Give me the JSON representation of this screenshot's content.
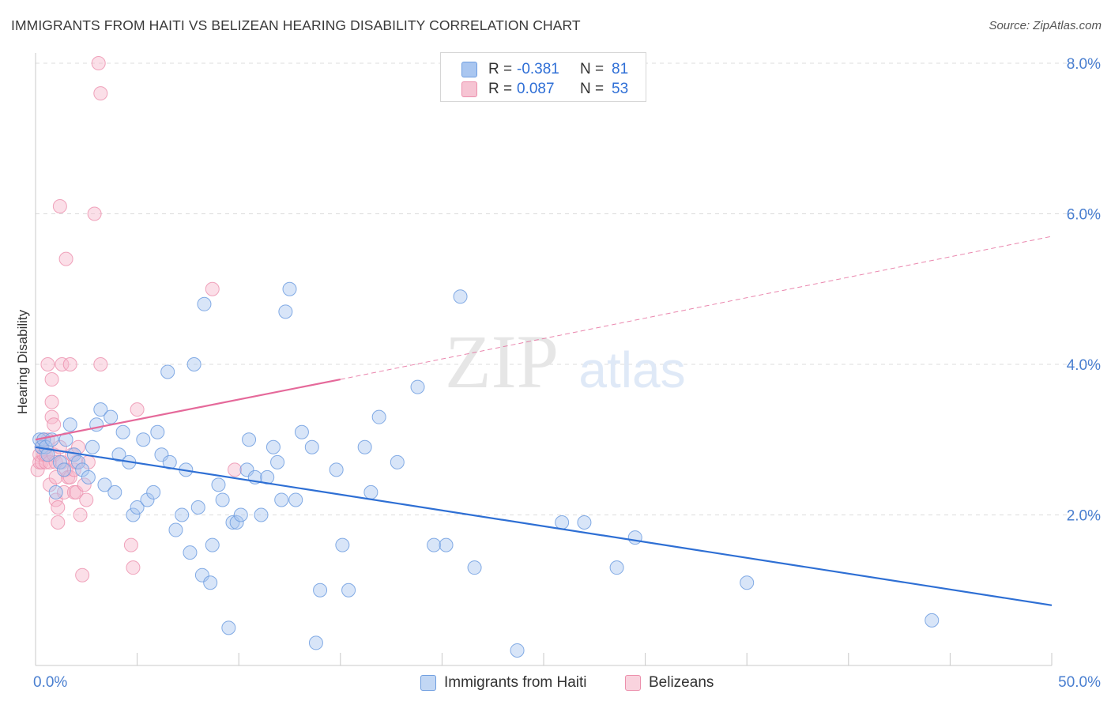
{
  "header": {
    "title": "IMMIGRANTS FROM HAITI VS BELIZEAN HEARING DISABILITY CORRELATION CHART",
    "source": "Source: ZipAtlas.com"
  },
  "watermark": {
    "zip": "ZIP",
    "atlas": "atlas"
  },
  "legend": {
    "r_label": "R =",
    "n_label": "N =",
    "rows": [
      {
        "r": "-0.381",
        "n": "81"
      },
      {
        "r": "0.087",
        "n": "53"
      }
    ]
  },
  "bottom_legend": {
    "haiti": "Immigrants from Haiti",
    "belize": "Belizeans"
  },
  "colors": {
    "haiti_fill": "#a9c6f0",
    "haiti_stroke": "#6f9ee0",
    "haiti_line": "#2e6fd4",
    "belize_fill": "#f6b8cb",
    "belize_stroke": "#ec8fac",
    "belize_line": "#e5699a",
    "tick_text": "#4a7fd0",
    "grid": "#dcdcdc"
  },
  "chart_data": {
    "type": "scatter",
    "title": "IMMIGRANTS FROM HAITI VS BELIZEAN HEARING DISABILITY CORRELATION CHART",
    "xlabel": "",
    "ylabel": "Hearing Disability",
    "xlim": [
      0,
      50
    ],
    "ylim": [
      0,
      8.0
    ],
    "x_tick_labels": [
      "0.0%",
      "50.0%"
    ],
    "y_ticks": [
      2.0,
      4.0,
      6.0,
      8.0
    ],
    "y_tick_labels": [
      "2.0%",
      "4.0%",
      "6.0%",
      "8.0%"
    ],
    "grid": true,
    "legend_placement": "top-center",
    "series": [
      {
        "name": "Immigrants from Haiti",
        "r": -0.381,
        "n": 81,
        "trend": {
          "x": [
            0,
            50
          ],
          "y": [
            2.9,
            0.8
          ]
        },
        "points": [
          [
            0.2,
            3.0
          ],
          [
            0.3,
            2.9
          ],
          [
            0.4,
            3.0
          ],
          [
            0.5,
            2.9
          ],
          [
            0.6,
            2.8
          ],
          [
            0.8,
            3.0
          ],
          [
            1.0,
            2.3
          ],
          [
            1.2,
            2.7
          ],
          [
            1.4,
            2.6
          ],
          [
            1.5,
            3.0
          ],
          [
            1.7,
            3.2
          ],
          [
            1.9,
            2.8
          ],
          [
            2.1,
            2.7
          ],
          [
            2.3,
            2.6
          ],
          [
            2.6,
            2.5
          ],
          [
            2.8,
            2.9
          ],
          [
            3.0,
            3.2
          ],
          [
            3.2,
            3.4
          ],
          [
            3.4,
            2.4
          ],
          [
            3.7,
            3.3
          ],
          [
            3.9,
            2.3
          ],
          [
            4.1,
            2.8
          ],
          [
            4.3,
            3.1
          ],
          [
            4.6,
            2.7
          ],
          [
            4.8,
            2.0
          ],
          [
            5.0,
            2.1
          ],
          [
            5.3,
            3.0
          ],
          [
            5.5,
            2.2
          ],
          [
            5.8,
            2.3
          ],
          [
            6.0,
            3.1
          ],
          [
            6.2,
            2.8
          ],
          [
            6.5,
            3.9
          ],
          [
            6.6,
            2.7
          ],
          [
            6.9,
            1.8
          ],
          [
            7.2,
            2.0
          ],
          [
            7.4,
            2.6
          ],
          [
            7.6,
            1.5
          ],
          [
            7.8,
            4.0
          ],
          [
            8.0,
            2.1
          ],
          [
            8.2,
            1.2
          ],
          [
            8.3,
            4.8
          ],
          [
            8.6,
            1.1
          ],
          [
            8.7,
            1.6
          ],
          [
            9.0,
            2.4
          ],
          [
            9.2,
            2.2
          ],
          [
            9.5,
            0.5
          ],
          [
            9.7,
            1.9
          ],
          [
            9.9,
            1.9
          ],
          [
            10.1,
            2.0
          ],
          [
            10.4,
            2.6
          ],
          [
            10.5,
            3.0
          ],
          [
            10.8,
            2.5
          ],
          [
            11.1,
            2.0
          ],
          [
            11.4,
            2.5
          ],
          [
            11.7,
            2.9
          ],
          [
            11.9,
            2.7
          ],
          [
            12.1,
            2.2
          ],
          [
            12.3,
            4.7
          ],
          [
            12.5,
            5.0
          ],
          [
            12.8,
            2.2
          ],
          [
            13.1,
            3.1
          ],
          [
            13.6,
            2.9
          ],
          [
            13.8,
            0.3
          ],
          [
            14.0,
            1.0
          ],
          [
            14.8,
            2.6
          ],
          [
            15.1,
            1.6
          ],
          [
            15.4,
            1.0
          ],
          [
            16.2,
            2.9
          ],
          [
            16.5,
            2.3
          ],
          [
            16.9,
            3.3
          ],
          [
            17.8,
            2.7
          ],
          [
            18.8,
            3.7
          ],
          [
            19.6,
            1.6
          ],
          [
            20.2,
            1.6
          ],
          [
            20.9,
            4.9
          ],
          [
            21.6,
            1.3
          ],
          [
            23.7,
            0.2
          ],
          [
            25.9,
            1.9
          ],
          [
            27.0,
            1.9
          ],
          [
            28.6,
            1.3
          ],
          [
            29.5,
            1.7
          ],
          [
            35.0,
            1.1
          ],
          [
            44.1,
            0.6
          ]
        ]
      },
      {
        "name": "Belizeans",
        "r": 0.087,
        "n": 53,
        "trend": {
          "x": [
            0,
            15
          ],
          "y": [
            3.0,
            3.8
          ]
        },
        "trend_extension": {
          "x": [
            15,
            50
          ],
          "y": [
            3.8,
            5.7
          ]
        },
        "points": [
          [
            0.1,
            2.6
          ],
          [
            0.2,
            2.7
          ],
          [
            0.2,
            2.8
          ],
          [
            0.3,
            2.9
          ],
          [
            0.3,
            2.7
          ],
          [
            0.4,
            2.8
          ],
          [
            0.4,
            3.0
          ],
          [
            0.5,
            2.7
          ],
          [
            0.5,
            2.8
          ],
          [
            0.6,
            3.0
          ],
          [
            0.6,
            4.0
          ],
          [
            0.7,
            2.7
          ],
          [
            0.7,
            2.4
          ],
          [
            0.8,
            3.8
          ],
          [
            0.8,
            3.5
          ],
          [
            0.8,
            3.3
          ],
          [
            0.9,
            3.2
          ],
          [
            0.9,
            2.8
          ],
          [
            1.0,
            2.7
          ],
          [
            1.0,
            2.5
          ],
          [
            1.0,
            2.2
          ],
          [
            1.1,
            2.1
          ],
          [
            1.1,
            1.9
          ],
          [
            1.2,
            6.1
          ],
          [
            1.2,
            2.9
          ],
          [
            1.3,
            4.0
          ],
          [
            1.3,
            2.7
          ],
          [
            1.4,
            2.3
          ],
          [
            1.5,
            5.4
          ],
          [
            1.5,
            2.6
          ],
          [
            1.6,
            2.5
          ],
          [
            1.7,
            4.0
          ],
          [
            1.7,
            2.5
          ],
          [
            1.8,
            2.8
          ],
          [
            1.9,
            2.6
          ],
          [
            1.9,
            2.3
          ],
          [
            2.0,
            2.3
          ],
          [
            2.0,
            2.7
          ],
          [
            2.1,
            2.9
          ],
          [
            2.2,
            2.0
          ],
          [
            2.3,
            1.2
          ],
          [
            2.4,
            2.4
          ],
          [
            2.5,
            2.2
          ],
          [
            2.6,
            2.7
          ],
          [
            2.9,
            6.0
          ],
          [
            3.1,
            8.0
          ],
          [
            3.2,
            4.0
          ],
          [
            3.2,
            7.6
          ],
          [
            4.7,
            1.6
          ],
          [
            4.8,
            1.3
          ],
          [
            5.0,
            3.4
          ],
          [
            8.7,
            5.0
          ],
          [
            9.8,
            2.6
          ]
        ]
      }
    ]
  }
}
